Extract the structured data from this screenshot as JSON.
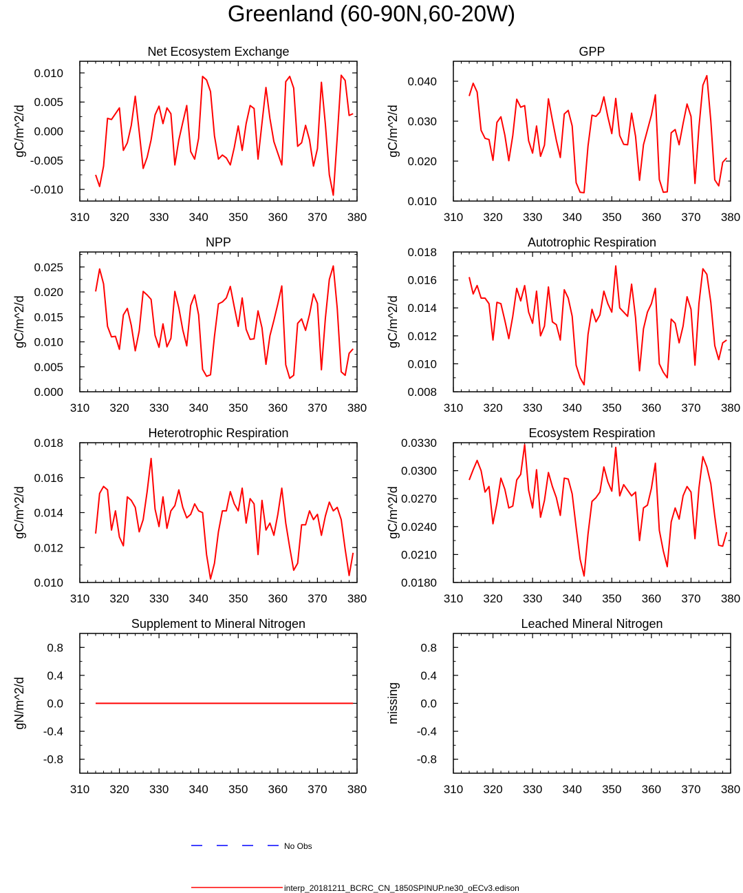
{
  "page": {
    "title": "Greenland (60-90N,60-20W)"
  },
  "legend": {
    "obs_label": "No Obs",
    "obs_color": "#0000ff",
    "model_label": "interp_20181211_BCRC_CN_1850SPINUP.ne30_oECv3.edison",
    "model_color": "#ff0000"
  },
  "chart_data": [
    {
      "type": "line",
      "title": "Net Ecosystem Exchange",
      "ylabel": "gC/m^2/d",
      "xlim": [
        310,
        380
      ],
      "ylim": [
        -0.012,
        0.012
      ],
      "xticks": [
        310,
        320,
        330,
        340,
        350,
        360,
        370,
        380
      ],
      "yticks": [
        -0.01,
        -0.005,
        0.0,
        0.005,
        0.01
      ],
      "ytick_labels": [
        "-0.010",
        "-0.005",
        "0.000",
        "0.005",
        "0.010"
      ],
      "series": [
        {
          "name": "interp_20181211_BCRC_CN_1850SPINUP.ne30_oECv3.edison",
          "x_start": 314,
          "values": [
            -0.0075,
            -0.0095,
            -0.006,
            0.0022,
            0.002,
            0.003,
            0.004,
            -0.0033,
            -0.002,
            0.001,
            0.006,
            -0.0001,
            -0.0064,
            -0.0045,
            -0.0015,
            0.0028,
            0.0043,
            0.0013,
            0.004,
            0.003,
            -0.0058,
            -0.0015,
            0.0015,
            0.0044,
            -0.0035,
            -0.0048,
            -0.0012,
            0.0094,
            0.0088,
            0.0068,
            -0.0008,
            -0.0048,
            -0.0041,
            -0.0046,
            -0.0058,
            -0.0028,
            0.0009,
            -0.0033,
            0.0013,
            0.0044,
            0.0039,
            -0.0048,
            0.0014,
            0.0075,
            0.0022,
            -0.0018,
            -0.0038,
            -0.0058,
            0.0085,
            0.0094,
            0.0074,
            -0.0026,
            -0.002,
            0.001,
            -0.0015,
            -0.006,
            -0.003,
            0.0084,
            0.0012,
            -0.0075,
            -0.011,
            -0.001,
            0.0096,
            0.0087,
            0.0027,
            0.003
          ]
        }
      ]
    },
    {
      "type": "line",
      "title": "GPP",
      "ylabel": "gC/m^2/d",
      "xlim": [
        310,
        380
      ],
      "ylim": [
        0.01,
        0.045
      ],
      "xticks": [
        310,
        320,
        330,
        340,
        350,
        360,
        370,
        380
      ],
      "yticks": [
        0.01,
        0.02,
        0.03,
        0.04
      ],
      "ytick_labels": [
        "0.010",
        "0.020",
        "0.030",
        "0.040"
      ],
      "series": [
        {
          "name": "interp_20181211_BCRC_CN_1850SPINUP.ne30_oECv3.edison",
          "x_start": 314,
          "values": [
            0.0363,
            0.0395,
            0.0373,
            0.0277,
            0.0257,
            0.0254,
            0.0202,
            0.0297,
            0.0311,
            0.0265,
            0.0201,
            0.0264,
            0.0355,
            0.0335,
            0.0339,
            0.0251,
            0.022,
            0.0288,
            0.0212,
            0.024,
            0.0356,
            0.0303,
            0.0252,
            0.0209,
            0.0318,
            0.0327,
            0.0288,
            0.0146,
            0.0122,
            0.0121,
            0.0238,
            0.0315,
            0.0312,
            0.0323,
            0.0361,
            0.0311,
            0.0269,
            0.0357,
            0.0264,
            0.0242,
            0.0241,
            0.032,
            0.0262,
            0.0152,
            0.0241,
            0.0278,
            0.0315,
            0.0366,
            0.0154,
            0.0122,
            0.0123,
            0.0271,
            0.0279,
            0.0241,
            0.0294,
            0.0343,
            0.0312,
            0.0144,
            0.0284,
            0.039,
            0.0414,
            0.0301,
            0.0153,
            0.0138,
            0.0197,
            0.0208
          ]
        }
      ]
    },
    {
      "type": "line",
      "title": "NPP",
      "ylabel": "gC/m^2/d",
      "xlim": [
        310,
        380
      ],
      "ylim": [
        0.0,
        0.028
      ],
      "xticks": [
        310,
        320,
        330,
        340,
        350,
        360,
        370,
        380
      ],
      "yticks": [
        0.0,
        0.005,
        0.01,
        0.015,
        0.02,
        0.025
      ],
      "ytick_labels": [
        "0.000",
        "0.005",
        "0.010",
        "0.015",
        "0.020",
        "0.025"
      ],
      "series": [
        {
          "name": "interp_20181211_BCRC_CN_1850SPINUP.ne30_oECv3.edison",
          "x_start": 314,
          "values": [
            0.0201,
            0.0246,
            0.0216,
            0.0131,
            0.011,
            0.0111,
            0.0085,
            0.0154,
            0.0167,
            0.0133,
            0.0082,
            0.0122,
            0.0201,
            0.0194,
            0.0185,
            0.0113,
            0.0089,
            0.0136,
            0.009,
            0.0107,
            0.0201,
            0.0168,
            0.0124,
            0.0092,
            0.0173,
            0.0194,
            0.0154,
            0.0045,
            0.0031,
            0.0034,
            0.0111,
            0.0176,
            0.018,
            0.0188,
            0.0211,
            0.017,
            0.0131,
            0.0188,
            0.0125,
            0.0105,
            0.0106,
            0.0162,
            0.0128,
            0.0055,
            0.0112,
            0.0143,
            0.0176,
            0.0212,
            0.0054,
            0.0027,
            0.0033,
            0.0137,
            0.0146,
            0.0123,
            0.0155,
            0.0196,
            0.0177,
            0.0044,
            0.0147,
            0.0225,
            0.0252,
            0.0167,
            0.004,
            0.0033,
            0.0077,
            0.0086
          ]
        }
      ]
    },
    {
      "type": "line",
      "title": "Autotrophic Respiration",
      "ylabel": "gC/m^2/d",
      "xlim": [
        310,
        380
      ],
      "ylim": [
        0.008,
        0.018
      ],
      "xticks": [
        310,
        320,
        330,
        340,
        350,
        360,
        370,
        380
      ],
      "yticks": [
        0.008,
        0.01,
        0.012,
        0.014,
        0.016,
        0.018
      ],
      "ytick_labels": [
        "0.008",
        "0.010",
        "0.012",
        "0.014",
        "0.016",
        "0.018"
      ],
      "series": [
        {
          "name": "interp_20181211_BCRC_CN_1850SPINUP.ne30_oECv3.edison",
          "x_start": 314,
          "values": [
            0.0162,
            0.015,
            0.0156,
            0.0147,
            0.0147,
            0.0143,
            0.0117,
            0.0144,
            0.0143,
            0.0131,
            0.0118,
            0.0134,
            0.0154,
            0.0145,
            0.0156,
            0.0137,
            0.0129,
            0.0152,
            0.012,
            0.0127,
            0.0155,
            0.013,
            0.0128,
            0.0117,
            0.0153,
            0.0147,
            0.0134,
            0.0099,
            0.009,
            0.0085,
            0.0121,
            0.0139,
            0.013,
            0.0135,
            0.0152,
            0.0143,
            0.0137,
            0.017,
            0.014,
            0.0137,
            0.0134,
            0.0157,
            0.0133,
            0.0095,
            0.0125,
            0.0137,
            0.0143,
            0.0154,
            0.01,
            0.0094,
            0.009,
            0.0132,
            0.0129,
            0.0115,
            0.0127,
            0.0148,
            0.0139,
            0.0099,
            0.0143,
            0.0168,
            0.0164,
            0.0144,
            0.0113,
            0.0103,
            0.0115,
            0.0117
          ]
        }
      ]
    },
    {
      "type": "line",
      "title": "Heterotrophic Respiration",
      "ylabel": "gC/m^2/d",
      "xlim": [
        310,
        380
      ],
      "ylim": [
        0.01,
        0.018
      ],
      "xticks": [
        310,
        320,
        330,
        340,
        350,
        360,
        370,
        380
      ],
      "yticks": [
        0.01,
        0.012,
        0.014,
        0.016,
        0.018
      ],
      "ytick_labels": [
        "0.010",
        "0.012",
        "0.014",
        "0.016",
        "0.018"
      ],
      "series": [
        {
          "name": "interp_20181211_BCRC_CN_1850SPINUP.ne30_oECv3.edison",
          "x_start": 314,
          "values": [
            0.0128,
            0.0151,
            0.0155,
            0.0153,
            0.013,
            0.0141,
            0.0126,
            0.0121,
            0.0149,
            0.0147,
            0.0143,
            0.0129,
            0.0136,
            0.0152,
            0.0171,
            0.0142,
            0.0132,
            0.0149,
            0.0131,
            0.0141,
            0.0144,
            0.0153,
            0.0143,
            0.0137,
            0.0139,
            0.0145,
            0.0141,
            0.014,
            0.0116,
            0.0102,
            0.0111,
            0.0129,
            0.0141,
            0.0141,
            0.0152,
            0.0145,
            0.0141,
            0.0154,
            0.0134,
            0.0148,
            0.0145,
            0.0116,
            0.0147,
            0.013,
            0.0134,
            0.0127,
            0.0139,
            0.0154,
            0.0134,
            0.012,
            0.0107,
            0.0111,
            0.0133,
            0.0133,
            0.0141,
            0.0136,
            0.0139,
            0.0127,
            0.0138,
            0.0146,
            0.0141,
            0.0143,
            0.0136,
            0.0119,
            0.0104,
            0.0117
          ]
        }
      ]
    },
    {
      "type": "line",
      "title": "Ecosystem Respiration",
      "ylabel": "gC/m^2/d",
      "xlim": [
        310,
        380
      ],
      "ylim": [
        0.018,
        0.033
      ],
      "xticks": [
        310,
        320,
        330,
        340,
        350,
        360,
        370,
        380
      ],
      "yticks": [
        0.018,
        0.021,
        0.024,
        0.027,
        0.03,
        0.033
      ],
      "ytick_labels": [
        "0.0180",
        "0.0210",
        "0.0240",
        "0.0270",
        "0.0300",
        "0.0330"
      ],
      "series": [
        {
          "name": "interp_20181211_BCRC_CN_1850SPINUP.ne30_oECv3.edison",
          "x_start": 314,
          "values": [
            0.029,
            0.0301,
            0.0311,
            0.03,
            0.0277,
            0.0283,
            0.0243,
            0.0265,
            0.0292,
            0.028,
            0.026,
            0.0262,
            0.029,
            0.0296,
            0.0328,
            0.0279,
            0.026,
            0.0301,
            0.025,
            0.0268,
            0.0298,
            0.0283,
            0.0271,
            0.0252,
            0.0292,
            0.0291,
            0.0275,
            0.0239,
            0.0205,
            0.0187,
            0.0232,
            0.0267,
            0.0271,
            0.0277,
            0.0304,
            0.0288,
            0.0278,
            0.0325,
            0.0273,
            0.0285,
            0.0279,
            0.0273,
            0.0277,
            0.0225,
            0.026,
            0.0263,
            0.0281,
            0.0308,
            0.0236,
            0.0214,
            0.0197,
            0.0245,
            0.026,
            0.0248,
            0.0273,
            0.0283,
            0.0277,
            0.0227,
            0.0281,
            0.0315,
            0.0304,
            0.0286,
            0.0251,
            0.022,
            0.0219,
            0.0234
          ]
        }
      ]
    },
    {
      "type": "line",
      "title": "Supplement to Mineral Nitrogen",
      "ylabel": "gN/m^2/d",
      "xlim": [
        310,
        380
      ],
      "ylim": [
        -1.0,
        1.0
      ],
      "xticks": [
        310,
        320,
        330,
        340,
        350,
        360,
        370,
        380
      ],
      "yticks": [
        -0.8,
        -0.4,
        0.0,
        0.4,
        0.8
      ],
      "ytick_labels": [
        "-0.8",
        "-0.4",
        "0.0",
        "0.4",
        "0.8"
      ],
      "series": [
        {
          "name": "interp_20181211_BCRC_CN_1850SPINUP.ne30_oECv3.edison",
          "x_start": 314,
          "values": [
            0,
            0,
            0,
            0,
            0,
            0,
            0,
            0,
            0,
            0,
            0,
            0,
            0,
            0,
            0,
            0,
            0,
            0,
            0,
            0,
            0,
            0,
            0,
            0,
            0,
            0,
            0,
            0,
            0,
            0,
            0,
            0,
            0,
            0,
            0,
            0,
            0,
            0,
            0,
            0,
            0,
            0,
            0,
            0,
            0,
            0,
            0,
            0,
            0,
            0,
            0,
            0,
            0,
            0,
            0,
            0,
            0,
            0,
            0,
            0,
            0,
            0,
            0,
            0,
            0,
            0
          ]
        }
      ]
    },
    {
      "type": "line",
      "title": "Leached Mineral Nitrogen",
      "ylabel": "missing",
      "xlim": [
        310,
        380
      ],
      "ylim": [
        -1.0,
        1.0
      ],
      "xticks": [
        310,
        320,
        330,
        340,
        350,
        360,
        370,
        380
      ],
      "yticks": [
        -0.8,
        -0.4,
        0.0,
        0.4,
        0.8
      ],
      "ytick_labels": [
        "-0.8",
        "-0.4",
        "0.0",
        "0.4",
        "0.8"
      ],
      "series": []
    }
  ]
}
